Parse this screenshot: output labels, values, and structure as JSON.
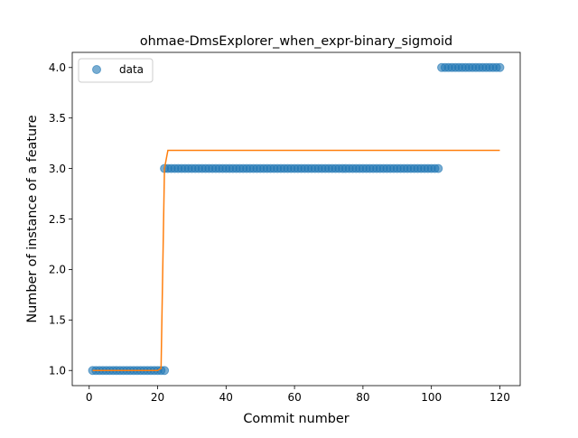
{
  "chart_data": {
    "type": "scatter",
    "title": "ohmae-DmsExplorer_when_expr-binary_sigmoid",
    "xlabel": "Commit number",
    "ylabel": "Number of instance of a feature",
    "xlim": [
      -4.95,
      125.95
    ],
    "ylim": [
      0.85,
      4.15
    ],
    "xticks": [
      0,
      20,
      40,
      60,
      80,
      100,
      120
    ],
    "yticks": [
      1.0,
      1.5,
      2.0,
      2.5,
      3.0,
      3.5,
      4.0
    ],
    "xtick_labels": [
      "0",
      "20",
      "40",
      "60",
      "80",
      "100",
      "120"
    ],
    "ytick_labels": [
      "1.0",
      "1.5",
      "2.0",
      "2.5",
      "3.0",
      "3.5",
      "4.0"
    ],
    "legend_position": "top-left",
    "grid": false,
    "colors": {
      "data": "#1f77b4",
      "fit": "#ff7f0e"
    },
    "series": [
      {
        "name": "data",
        "kind": "points",
        "segments": [
          {
            "x_from": 1,
            "x_to": 22,
            "y": 1.0
          },
          {
            "x_from": 22,
            "x_to": 102,
            "y": 3.0
          },
          {
            "x_from": 103,
            "x_to": 120,
            "y": 4.0
          }
        ]
      },
      {
        "kind": "line",
        "x": [
          1,
          20,
          21,
          22,
          23,
          24,
          120
        ],
        "y": [
          1.0,
          1.0,
          1.02,
          3.0,
          3.18,
          3.18,
          3.18
        ]
      }
    ]
  }
}
